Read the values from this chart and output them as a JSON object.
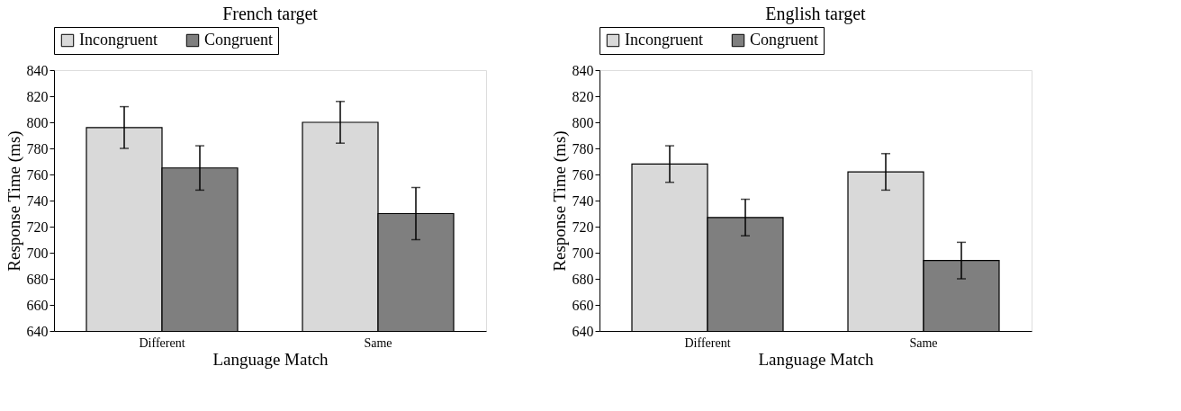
{
  "chart_data": [
    {
      "type": "bar",
      "title": "French target",
      "xlabel": "Language Match",
      "ylabel": "Response Time (ms)",
      "categories": [
        "Different",
        "Same"
      ],
      "series": [
        {
          "name": "Incongruent",
          "color": "#d9d9d9",
          "values": [
            796,
            800
          ],
          "errors": [
            16,
            16
          ]
        },
        {
          "name": "Congruent",
          "color": "#7f7f7f",
          "values": [
            765,
            730
          ],
          "errors": [
            17,
            20
          ]
        }
      ],
      "ylim": [
        640,
        840
      ],
      "yticks": [
        640,
        660,
        680,
        700,
        720,
        740,
        760,
        780,
        800,
        820,
        840
      ],
      "grid": false,
      "legend": "top"
    },
    {
      "type": "bar",
      "title": "English target",
      "xlabel": "Language Match",
      "ylabel": "Response Time (ms)",
      "categories": [
        "Different",
        "Same"
      ],
      "series": [
        {
          "name": "Incongruent",
          "color": "#d9d9d9",
          "values": [
            768,
            762
          ],
          "errors": [
            14,
            14
          ]
        },
        {
          "name": "Congruent",
          "color": "#7f7f7f",
          "values": [
            727,
            694
          ],
          "errors": [
            14,
            14
          ]
        }
      ],
      "ylim": [
        640,
        840
      ],
      "yticks": [
        640,
        660,
        680,
        700,
        720,
        740,
        760,
        780,
        800,
        820,
        840
      ],
      "grid": false,
      "legend": "top"
    }
  ]
}
